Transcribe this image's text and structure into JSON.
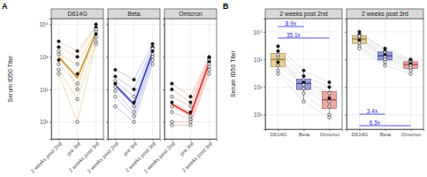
{
  "chart_data": [
    {
      "type": "line",
      "panel_label": "A",
      "title": "D614G",
      "y_label": "Serum ID50 Titer",
      "categories": [
        "2 weeks post 2nd",
        "pre 3rd",
        "2 weeks post 3rd"
      ],
      "log": "y",
      "grid": true,
      "ylim": [
        3,
        15000
      ],
      "yticks": [
        {
          "value": 10,
          "label": "10¹"
        },
        {
          "value": 100,
          "label": "10²"
        },
        {
          "value": 1000,
          "label": "10³"
        },
        {
          "value": 10000,
          "label": "10⁴"
        }
      ],
      "series": [
        {
          "color": "#e8cf96",
          "marker": "filled",
          "line_style": "thin",
          "values": [
            3000,
            1500,
            8000
          ]
        },
        {
          "color": "#e8cf96",
          "marker": "filled",
          "line_style": "thin",
          "values": [
            2000,
            1000,
            10000
          ]
        },
        {
          "color": "#e8cf96",
          "marker": "open",
          "line_style": "thin",
          "values": [
            1200,
            600,
            6000
          ]
        },
        {
          "color": "#e8cf96",
          "marker": "filled",
          "line_style": "thin",
          "values": [
            800,
            300,
            5000
          ]
        },
        {
          "color": "#e8cf96",
          "marker": "open",
          "line_style": "thin",
          "values": [
            600,
            150,
            4000
          ]
        },
        {
          "color": "#e8cf96",
          "marker": "open",
          "line_style": "thin",
          "values": [
            1500,
            100,
            7000
          ]
        },
        {
          "color": "#e8cf96",
          "marker": "open",
          "line_style": "thin",
          "values": [
            400,
            50,
            3000
          ]
        },
        {
          "color": "#e8cf96",
          "marker": "open",
          "line_style": "thin",
          "values": [
            300,
            10,
            2500
          ]
        },
        {
          "color": "#c8922a",
          "line_style": "bold",
          "values": [
            1000,
            225,
            5500
          ]
        }
      ]
    },
    {
      "type": "line",
      "title": "Beta",
      "tick_labels": "x",
      "categories": [
        "2 weeks post 2nd",
        "pre 3rd",
        "2 weeks post 3rd"
      ],
      "log": "y",
      "grid": true,
      "ylim": [
        3,
        15000
      ],
      "yticks": [
        {
          "value": 10,
          "label": "10¹"
        },
        {
          "value": 100,
          "label": "10²"
        },
        {
          "value": 1000,
          "label": "10³"
        },
        {
          "value": 10000,
          "label": "10⁴"
        }
      ],
      "series": [
        {
          "color": "#a9b0e6",
          "marker": "filled",
          "line_style": "thin",
          "values": [
            400,
            200,
            2500
          ]
        },
        {
          "color": "#a9b0e6",
          "marker": "filled",
          "line_style": "thin",
          "values": [
            250,
            100,
            2000
          ]
        },
        {
          "color": "#a9b0e6",
          "marker": "open",
          "line_style": "thin",
          "values": [
            180,
            60,
            1800
          ]
        },
        {
          "color": "#a9b0e6",
          "marker": "filled",
          "line_style": "thin",
          "values": [
            150,
            40,
            1500
          ]
        },
        {
          "color": "#a9b0e6",
          "marker": "open",
          "line_style": "thin",
          "values": [
            120,
            30,
            1200
          ]
        },
        {
          "color": "#a9b0e6",
          "marker": "open",
          "line_style": "thin",
          "values": [
            90,
            20,
            1000
          ]
        },
        {
          "color": "#a9b0e6",
          "marker": "open",
          "line_style": "thin",
          "values": [
            60,
            15,
            800
          ]
        },
        {
          "color": "#a9b0e6",
          "marker": "open",
          "line_style": "thin",
          "values": [
            30,
            10,
            600
          ]
        },
        {
          "color": "#2f3db5",
          "line_style": "bold",
          "values": [
            135,
            35,
            1350
          ]
        }
      ]
    },
    {
      "type": "line",
      "title": "Omicron",
      "tick_labels": "x",
      "categories": [
        "2 weeks post 2nd",
        "pre 3rd",
        "2 weeks post 3rd"
      ],
      "log": "y",
      "grid": true,
      "ylim": [
        3,
        15000
      ],
      "yticks": [
        {
          "value": 10,
          "label": "10¹"
        },
        {
          "value": 100,
          "label": "10²"
        },
        {
          "value": 1000,
          "label": "10³"
        },
        {
          "value": 10000,
          "label": "10⁴"
        }
      ],
      "series": [
        {
          "color": "#f0a9a5",
          "marker": "filled",
          "line_style": "thin",
          "values": [
            150,
            60,
            1000
          ]
        },
        {
          "color": "#f0a9a5",
          "marker": "filled",
          "line_style": "thin",
          "values": [
            100,
            40,
            900
          ]
        },
        {
          "color": "#f0a9a5",
          "marker": "open",
          "line_style": "thin",
          "values": [
            60,
            30,
            800
          ]
        },
        {
          "color": "#f0a9a5",
          "marker": "filled",
          "line_style": "thin",
          "values": [
            40,
            20,
            700
          ]
        },
        {
          "color": "#f0a9a5",
          "marker": "open",
          "line_style": "thin",
          "values": [
            30,
            15,
            600
          ]
        },
        {
          "color": "#f0a9a5",
          "marker": "open",
          "line_style": "thin",
          "values": [
            20,
            12,
            500
          ]
        },
        {
          "color": "#f0a9a5",
          "marker": "open",
          "line_style": "thin",
          "values": [
            10,
            10,
            400
          ]
        },
        {
          "color": "#f0a9a5",
          "marker": "open",
          "line_style": "thin",
          "values": [
            8,
            8,
            300
          ]
        },
        {
          "color": "#e0312a",
          "line_style": "bold",
          "values": [
            35,
            17,
            650
          ]
        }
      ]
    },
    {
      "type": "box",
      "panel_label": "B",
      "title": "2 weeks post 2nd",
      "y_label": "Serum ID50 Titer",
      "categories": [
        "D614G",
        "Beta",
        "Omicron"
      ],
      "log": "y",
      "grid": true,
      "ylim": [
        3,
        30000
      ],
      "yticks": [
        {
          "value": 10,
          "label": "10¹"
        },
        {
          "value": 100,
          "label": "10²"
        },
        {
          "value": 1000,
          "label": "10³"
        },
        {
          "value": 10000,
          "label": "10⁴"
        }
      ],
      "colors": [
        "#d9b25a",
        "#5a63c8",
        "#e0706a"
      ],
      "boxes": [
        {
          "low": 300,
          "q1": 550,
          "median": 1000,
          "q3": 1650,
          "high": 3000
        },
        {
          "low": 30,
          "q1": 82,
          "median": 135,
          "q3": 190,
          "high": 400
        },
        {
          "low": 8,
          "q1": 17,
          "median": 35,
          "q3": 70,
          "high": 150
        }
      ],
      "series": [
        {
          "color": "#c8c8c8",
          "marker": "filled",
          "values": [
            3000,
            400,
            150
          ]
        },
        {
          "color": "#c8c8c8",
          "marker": "filled",
          "values": [
            2000,
            250,
            100
          ]
        },
        {
          "color": "#c8c8c8",
          "marker": "open",
          "values": [
            1200,
            180,
            60
          ]
        },
        {
          "color": "#c8c8c8",
          "marker": "filled",
          "values": [
            800,
            150,
            40
          ]
        },
        {
          "color": "#c8c8c8",
          "marker": "open",
          "values": [
            600,
            120,
            30
          ]
        },
        {
          "color": "#c8c8c8",
          "marker": "open",
          "values": [
            1500,
            90,
            20
          ]
        },
        {
          "color": "#c8c8c8",
          "marker": "open",
          "values": [
            400,
            60,
            10
          ]
        },
        {
          "color": "#c8c8c8",
          "marker": "open",
          "values": [
            300,
            30,
            8
          ]
        }
      ],
      "annotations": [
        {
          "text": "8.9x",
          "from": "D614G",
          "to": "Beta"
        },
        {
          "text": "35.1x",
          "from": "D614G",
          "to": "Omicron"
        }
      ]
    },
    {
      "type": "box",
      "title": "2 weeks post 3rd",
      "tick_labels": "x",
      "categories": [
        "D614G",
        "Beta",
        "Omicron"
      ],
      "log": "y",
      "grid": true,
      "ylim": [
        3,
        30000
      ],
      "yticks": [
        {
          "value": 10,
          "label": "10¹"
        },
        {
          "value": 100,
          "label": "10²"
        },
        {
          "value": 1000,
          "label": "10³"
        },
        {
          "value": 10000,
          "label": "10⁴"
        }
      ],
      "colors": [
        "#d9b25a",
        "#5a63c8",
        "#e0706a"
      ],
      "boxes": [
        {
          "low": 2500,
          "q1": 3750,
          "median": 5500,
          "q3": 7250,
          "high": 10000
        },
        {
          "low": 600,
          "q1": 950,
          "median": 1350,
          "q3": 1850,
          "high": 2500
        },
        {
          "low": 300,
          "q1": 475,
          "median": 650,
          "q3": 825,
          "high": 1000
        }
      ],
      "series": [
        {
          "color": "#c8c8c8",
          "marker": "filled",
          "values": [
            8000,
            2500,
            1000
          ]
        },
        {
          "color": "#c8c8c8",
          "marker": "filled",
          "values": [
            10000,
            2000,
            900
          ]
        },
        {
          "color": "#c8c8c8",
          "marker": "open",
          "values": [
            6000,
            1800,
            800
          ]
        },
        {
          "color": "#c8c8c8",
          "marker": "filled",
          "values": [
            5000,
            1500,
            700
          ]
        },
        {
          "color": "#c8c8c8",
          "marker": "open",
          "values": [
            4000,
            1200,
            600
          ]
        },
        {
          "color": "#c8c8c8",
          "marker": "open",
          "values": [
            7000,
            1000,
            500
          ]
        },
        {
          "color": "#c8c8c8",
          "marker": "open",
          "values": [
            3000,
            800,
            400
          ]
        },
        {
          "color": "#c8c8c8",
          "marker": "open",
          "values": [
            2500,
            600,
            300
          ]
        }
      ],
      "annotations": [
        {
          "text": "3.4x",
          "from": "D614G",
          "to": "Beta"
        },
        {
          "text": "6.5x",
          "from": "D614G",
          "to": "Omicron"
        }
      ]
    }
  ]
}
